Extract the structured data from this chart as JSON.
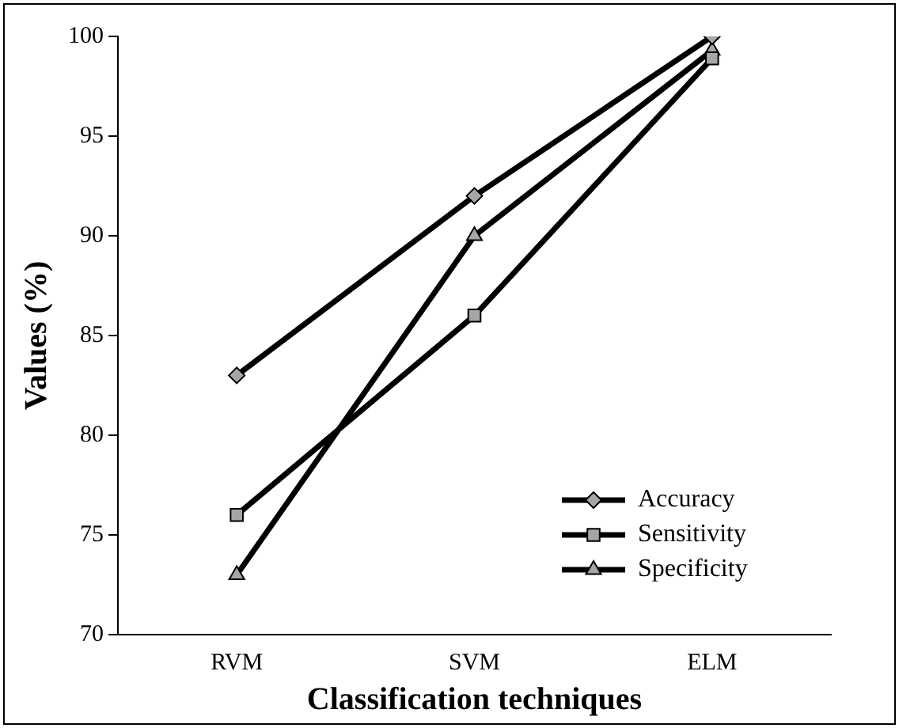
{
  "chart_data": {
    "type": "line",
    "xlabel": "Classification techniques",
    "ylabel": "Values (%)",
    "categories": [
      "RVM",
      "SVM",
      "ELM"
    ],
    "series": [
      {
        "name": "Accuracy",
        "color": "#000000",
        "marker": "diamond",
        "values": [
          83,
          92,
          100
        ]
      },
      {
        "name": "Sensitivity",
        "color": "#000000",
        "marker": "square",
        "values": [
          76,
          86,
          98.9
        ]
      },
      {
        "name": "Specificity",
        "color": "#000000",
        "marker": "triangle",
        "values": [
          73,
          90,
          99.3
        ]
      }
    ],
    "ylim": [
      70,
      100
    ],
    "yticks": [
      70,
      75,
      80,
      85,
      90,
      95,
      100
    ],
    "grid": false,
    "legend": "bottom right",
    "line_style": "solid"
  }
}
